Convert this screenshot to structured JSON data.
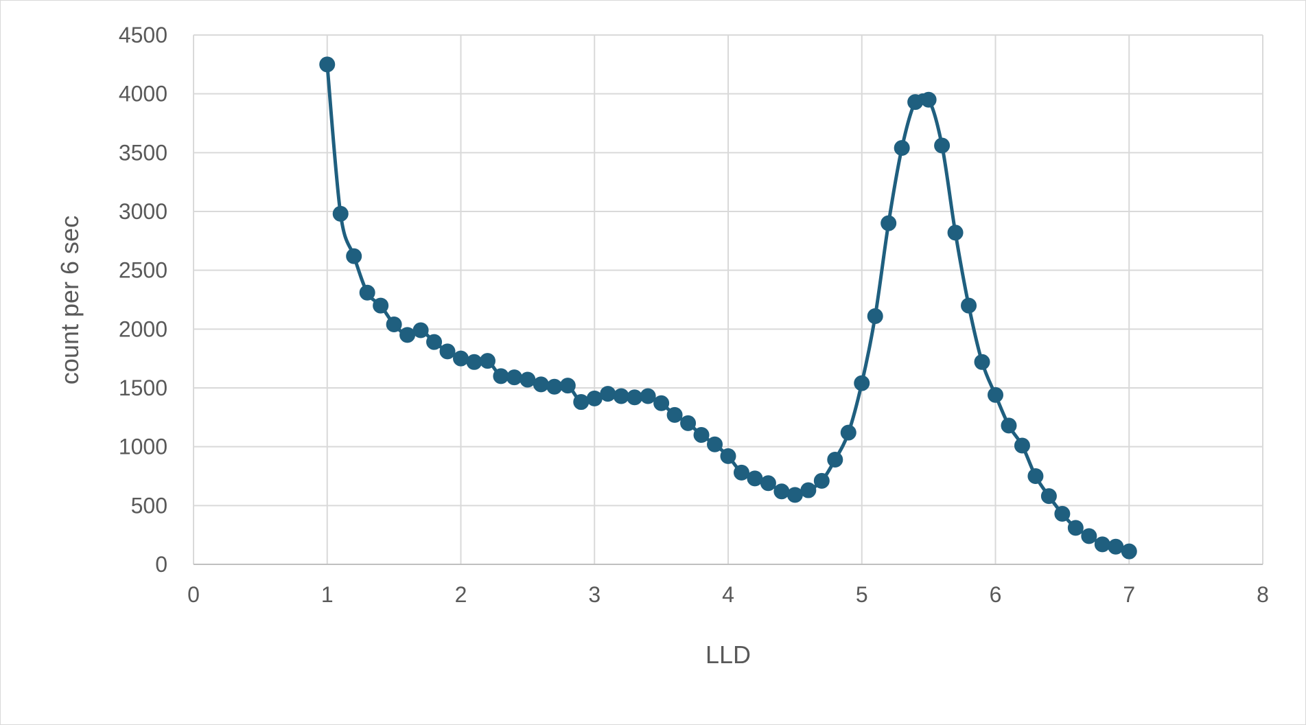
{
  "chart_data": {
    "type": "scatter",
    "title": "",
    "xlabel": "LLD",
    "ylabel": "count per 6 sec",
    "xlim": [
      0,
      8
    ],
    "ylim": [
      0,
      4500
    ],
    "x_ticks": [
      "0",
      "1",
      "2",
      "3",
      "4",
      "5",
      "6",
      "7",
      "8"
    ],
    "y_ticks": [
      "0",
      "500",
      "1000",
      "1500",
      "2000",
      "2500",
      "3000",
      "3500",
      "4000",
      "4500"
    ],
    "grid": true,
    "legend": "none",
    "line_style": "smoothed line with markers",
    "color": "#1f5f7f",
    "series": [
      {
        "x": [
          1.0,
          1.1,
          1.2,
          1.3,
          1.4,
          1.5,
          1.6,
          1.7,
          1.8,
          1.9,
          2.0,
          2.1,
          2.2,
          2.3,
          2.4,
          2.5,
          2.6,
          2.7,
          2.8,
          2.9,
          3.0,
          3.1,
          3.2,
          3.3,
          3.4,
          3.5,
          3.6,
          3.7,
          3.8,
          3.9,
          4.0,
          4.1,
          4.2,
          4.3,
          4.4,
          4.5,
          4.6,
          4.7,
          4.8,
          4.9,
          5.0,
          5.1,
          5.2,
          5.3,
          5.4,
          5.5,
          5.6,
          5.7,
          5.8,
          5.9,
          6.0,
          6.1,
          6.2,
          6.3,
          6.4,
          6.5,
          6.6,
          6.7,
          6.8,
          6.9,
          7.0
        ],
        "y": [
          4250,
          2980,
          2620,
          2310,
          2200,
          2040,
          1950,
          1990,
          1890,
          1810,
          1750,
          1720,
          1730,
          1600,
          1590,
          1570,
          1530,
          1510,
          1520,
          1380,
          1410,
          1450,
          1430,
          1420,
          1430,
          1370,
          1270,
          1200,
          1100,
          1020,
          920,
          780,
          730,
          690,
          620,
          590,
          630,
          710,
          890,
          1120,
          1540,
          2110,
          2900,
          3540,
          3930,
          3950,
          3560,
          2820,
          2200,
          1720,
          1440,
          1180,
          1010,
          750,
          580,
          430,
          310,
          240,
          170,
          150,
          110
        ]
      }
    ]
  }
}
